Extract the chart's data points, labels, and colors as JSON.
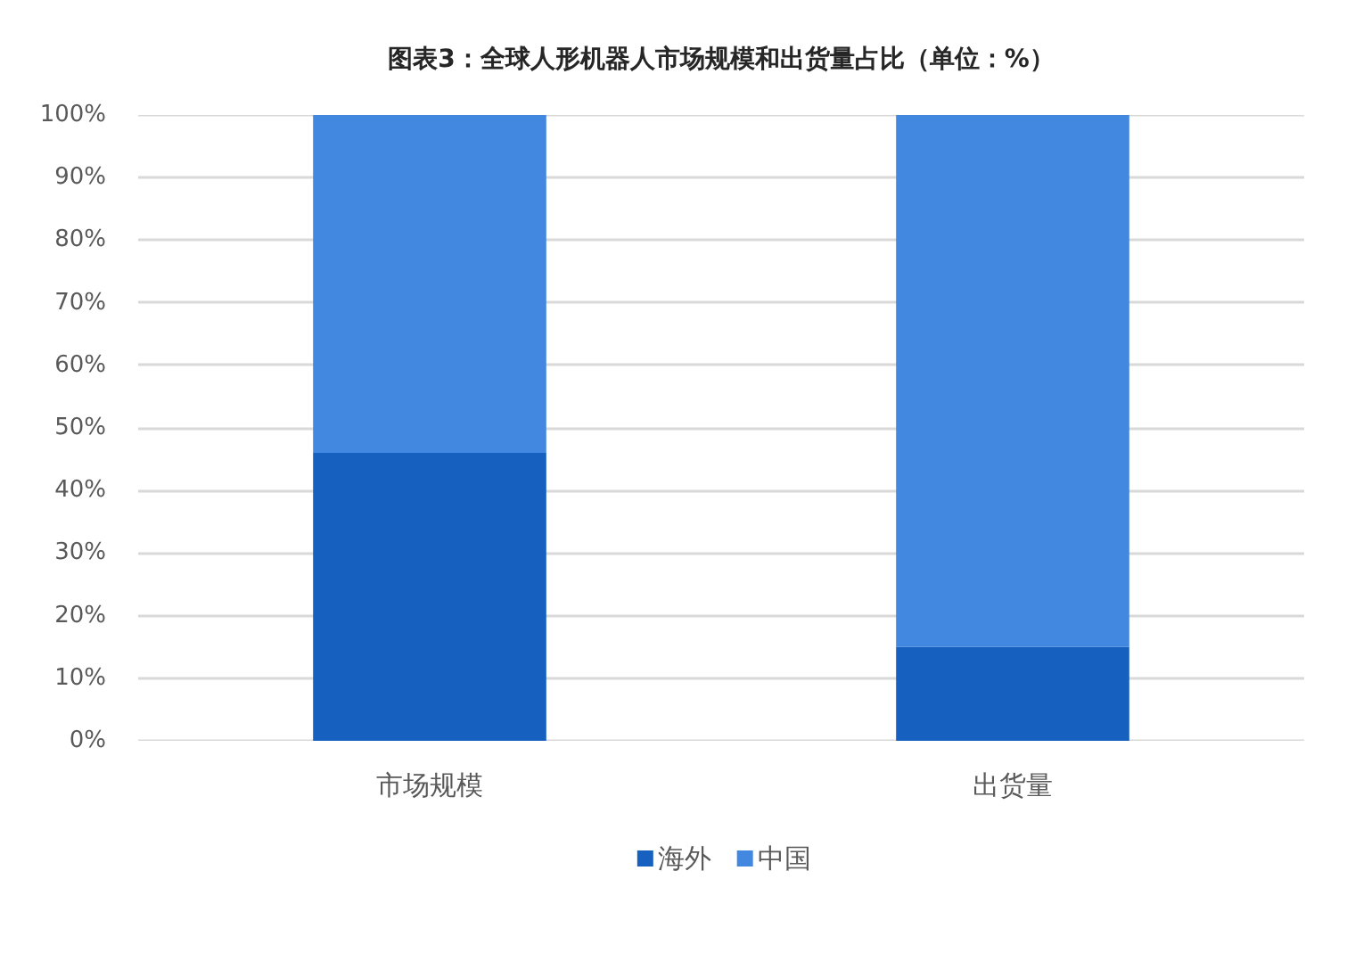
{
  "chart_data": {
    "type": "bar",
    "title": "图表3：全球人形机器人市场规模和出货量占比（单位：%）",
    "categories": [
      "市场规模",
      "出货量"
    ],
    "series": [
      {
        "name": "海外",
        "color": "#1660c0",
        "values": [
          46,
          15
        ]
      },
      {
        "name": "中国",
        "color": "#4287e0",
        "values": [
          54,
          85
        ]
      }
    ],
    "stacked": true,
    "ylim": [
      0,
      100
    ],
    "yticks": [
      {
        "value": 0,
        "label": "0%"
      },
      {
        "value": 10,
        "label": "10%"
      },
      {
        "value": 20,
        "label": "20%"
      },
      {
        "value": 30,
        "label": "30%"
      },
      {
        "value": 40,
        "label": "40%"
      },
      {
        "value": 50,
        "label": "50%"
      },
      {
        "value": 60,
        "label": "60%"
      },
      {
        "value": 70,
        "label": "70%"
      },
      {
        "value": 80,
        "label": "80%"
      },
      {
        "value": 90,
        "label": "90%"
      },
      {
        "value": 100,
        "label": "100%"
      }
    ],
    "grid": "y",
    "legend": "bottom"
  }
}
